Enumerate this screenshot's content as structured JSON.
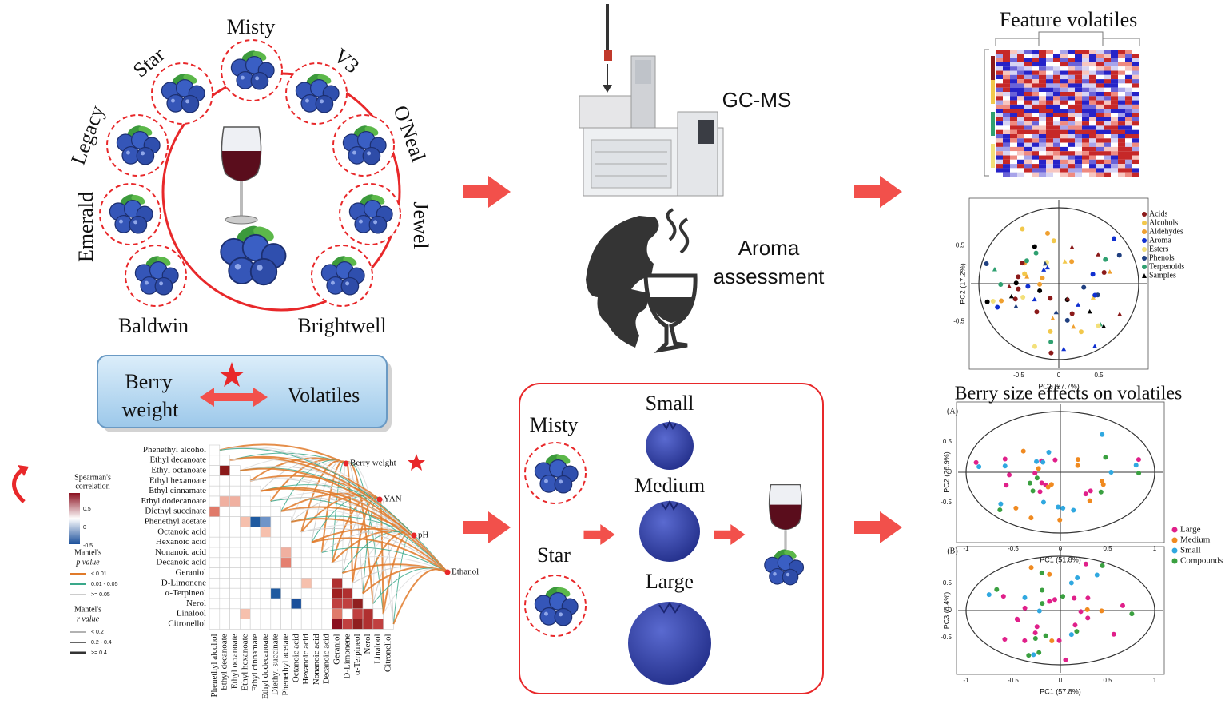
{
  "cultivars": {
    "names": [
      "Misty",
      "V3",
      "O'Neal",
      "Jewel",
      "Brightwell",
      "Baldwin",
      "Emerald",
      "Legacy",
      "Star"
    ]
  },
  "gcms": {
    "label": "GC-MS"
  },
  "aroma": {
    "lines": [
      "Aroma",
      "assessment"
    ]
  },
  "feature": {
    "title": "Feature volatiles"
  },
  "pca1": {
    "xlabel": "PC1 (27.7%)",
    "ylabel": "PC2 (17.2%)",
    "xticks": [
      "-0.5",
      "0",
      "0.5"
    ],
    "yticks": [
      "0.5",
      "-0.5"
    ],
    "legend": [
      {
        "label": "Acids",
        "color": "#8b1a1a"
      },
      {
        "label": "Alcohols",
        "color": "#f2c84b"
      },
      {
        "label": "Aldehydes",
        "color": "#f0a030"
      },
      {
        "label": "Aroma",
        "color": "#1030d0"
      },
      {
        "label": "Esters",
        "color": "#f3e07a"
      },
      {
        "label": "Phenols",
        "color": "#1f3f80"
      },
      {
        "label": "Terpenoids",
        "color": "#2fa070"
      },
      {
        "label": "Samples",
        "color": "#000000"
      }
    ]
  },
  "relation": {
    "left": [
      "Berry",
      "weight"
    ],
    "right": "Volatiles"
  },
  "mantel": {
    "compounds": [
      "Phenethyl alcohol",
      "Ethyl decanoate",
      "Ethyl octanoate",
      "Ethyl hexanoate",
      "Ethyl cinnamate",
      "Ethyl dodecanoate",
      "Diethyl succinate",
      "Phenethyl acetate",
      "Octanoic acid",
      "Hexanoic acid",
      "Nonanoic acid",
      "Decanoic acid",
      "Geraniol",
      "D-Limonene",
      "α-Terpineol",
      "Nerol",
      "Linalool",
      "Citronellol"
    ],
    "targets": [
      "Berry weight",
      "YAN",
      "pH",
      "Ethanol"
    ],
    "legend": {
      "corr_title": [
        "Spearman's",
        "correlation"
      ],
      "corr_ticks": [
        "0.5",
        "0",
        "-0.5"
      ],
      "p_title": [
        "Mantel's",
        "p value"
      ],
      "p_items": [
        "< 0.01",
        "0.01 - 0.05",
        ">= 0.05"
      ],
      "r_title": [
        "Mantel's",
        "r value"
      ],
      "r_items": [
        "< 0.2",
        "0.2 - 0.4",
        ">= 0.4"
      ]
    }
  },
  "size": {
    "cultivars": [
      "Misty",
      "Star"
    ],
    "sizes": [
      "Small",
      "Medium",
      "Large"
    ]
  },
  "size_effects": {
    "title": "Berry size effects on volatiles",
    "a": {
      "tag": "(A)",
      "xlabel": "PC1 (51.8%)",
      "ylabel": "PC2 (26.9%)",
      "xticks": [
        "-1",
        "-0.5",
        "0",
        "0.5",
        "1"
      ],
      "yticks": [
        "0.5",
        "0",
        "-0.5"
      ]
    },
    "b": {
      "tag": "(B)",
      "xlabel": "PC1 (57.8%)",
      "ylabel": "PC3 (8.4%)",
      "xticks": [
        "-1",
        "-0.5",
        "0",
        "0.5",
        "1"
      ],
      "yticks": [
        "0.5",
        "0",
        "-0.5"
      ]
    },
    "legend": [
      {
        "label": "Large",
        "color": "#e0208a"
      },
      {
        "label": "Medium",
        "color": "#f08a20"
      },
      {
        "label": "Small",
        "color": "#30a8e0"
      },
      {
        "label": "Compounds",
        "color": "#3aa040"
      }
    ]
  }
}
